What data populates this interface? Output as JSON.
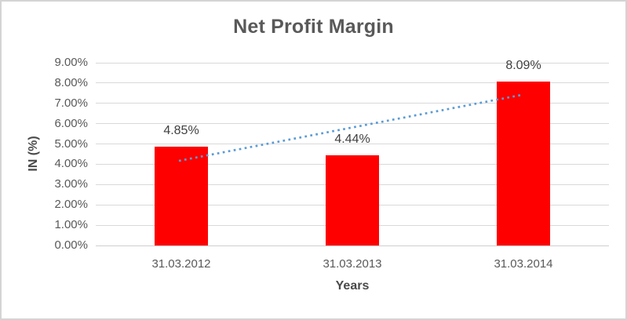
{
  "window": {
    "background": "#ffffff",
    "border_color": "#d4d4d4"
  },
  "chart_data": {
    "type": "bar",
    "title": "Net Profit Margin",
    "xlabel": "Years",
    "ylabel": "IN (%)",
    "categories": [
      "31.03.2012",
      "31.03.2013",
      "31.03.2014"
    ],
    "values": [
      4.85,
      4.44,
      8.09
    ],
    "data_labels": [
      "4.85%",
      "4.44%",
      "8.09%"
    ],
    "ylim": [
      0,
      9
    ],
    "ytick_step": 1,
    "yticks": [
      "0.00%",
      "1.00%",
      "2.00%",
      "3.00%",
      "4.00%",
      "5.00%",
      "6.00%",
      "7.00%",
      "8.00%",
      "9.00%"
    ],
    "grid": true,
    "legend": "none",
    "bar_color": "#ff0000",
    "title_color": "#595959",
    "tick_color": "#595959",
    "data_label_color": "#404040",
    "gridline_color": "#d9d9d9",
    "trendline": {
      "type": "linear",
      "style": "dotted",
      "color": "#5b9bd5",
      "start_value": 4.17,
      "end_value": 7.41
    }
  }
}
